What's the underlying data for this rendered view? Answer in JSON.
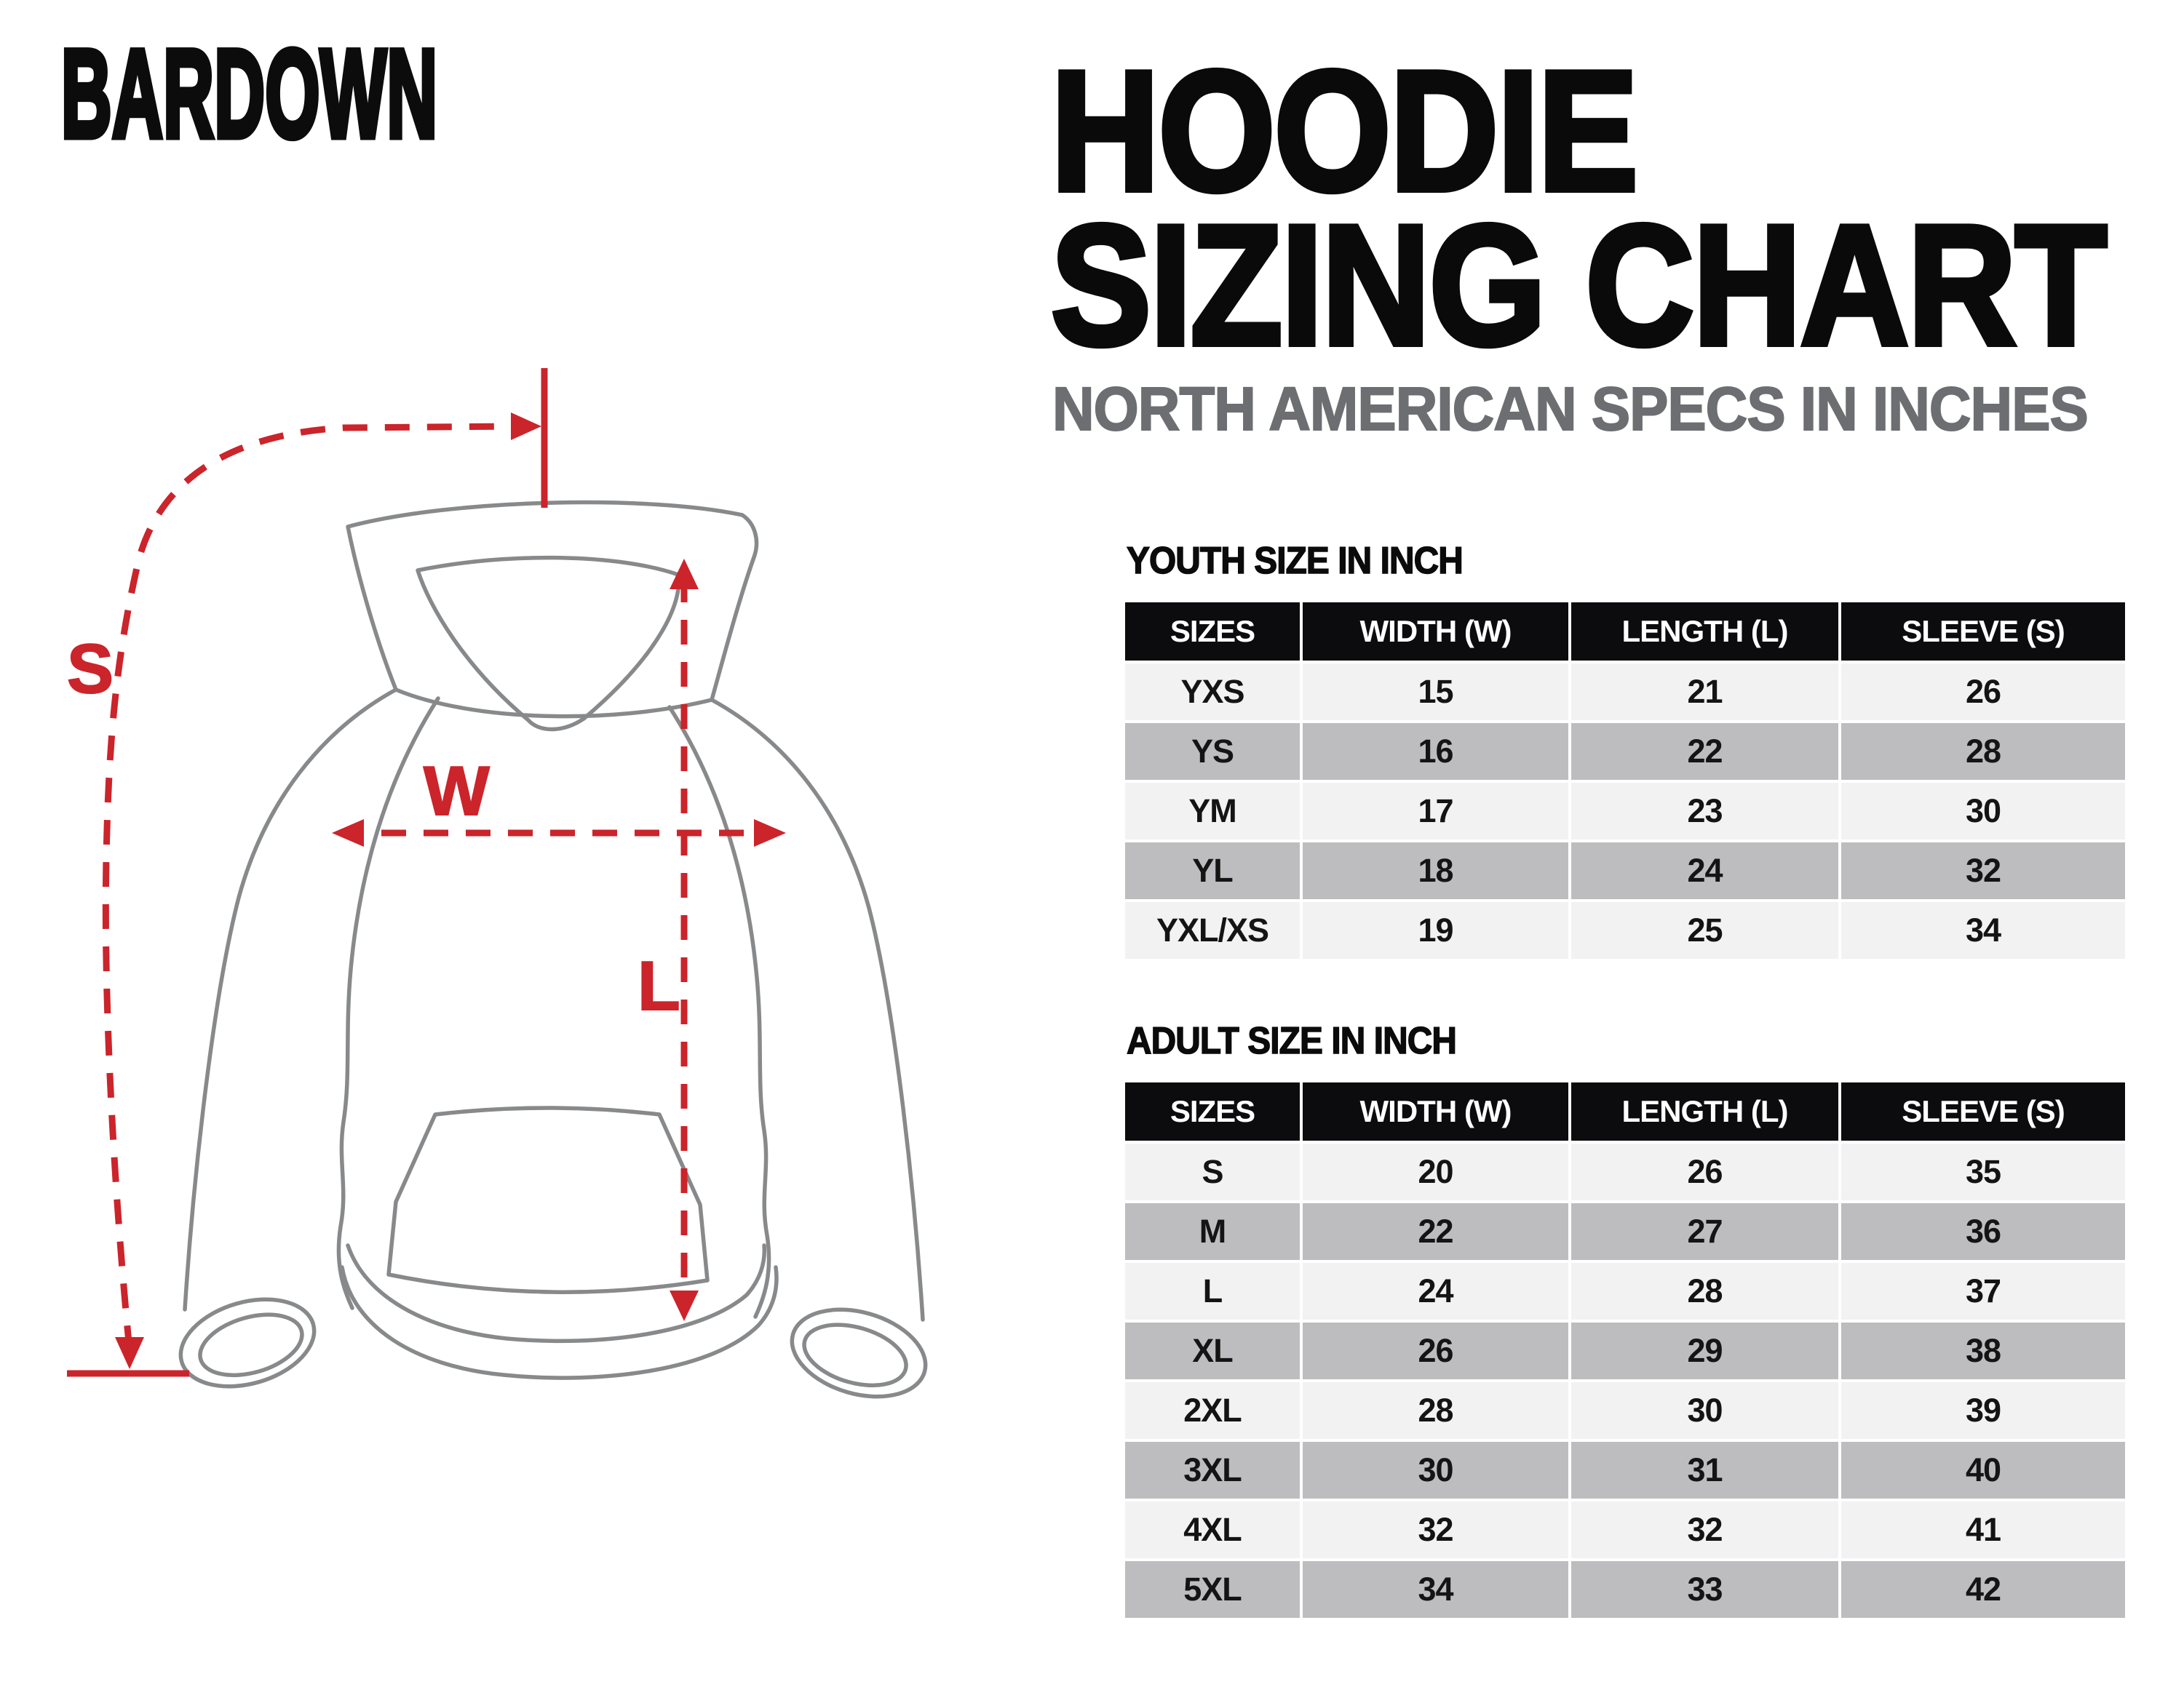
{
  "brand": "BARDOWN",
  "title": {
    "line1": "HOODIE",
    "line2": "SIZING CHART",
    "subtitle": "NORTH AMERICAN SPECS IN INCHES"
  },
  "diagram": {
    "labels": {
      "sleeve": "S",
      "width": "W",
      "length": "L"
    }
  },
  "colors": {
    "accent_red": "#cb242b",
    "header_bg": "#0c0c0e",
    "row_light": "#f2f2f3",
    "row_dark": "#bdbdbf",
    "subtitle_gray": "#6d6e71",
    "outline_gray": "#87898b"
  },
  "tables": [
    {
      "heading": "YOUTH SIZE IN INCH",
      "columns": [
        "SIZES",
        "WIDTH (W)",
        "LENGTH (L)",
        "SLEEVE (S)"
      ],
      "rows": [
        [
          "YXS",
          "15",
          "21",
          "26"
        ],
        [
          "YS",
          "16",
          "22",
          "28"
        ],
        [
          "YM",
          "17",
          "23",
          "30"
        ],
        [
          "YL",
          "18",
          "24",
          "32"
        ],
        [
          "YXL/XS",
          "19",
          "25",
          "34"
        ]
      ]
    },
    {
      "heading": "ADULT SIZE IN INCH",
      "columns": [
        "SIZES",
        "WIDTH (W)",
        "LENGTH (L)",
        "SLEEVE (S)"
      ],
      "rows": [
        [
          "S",
          "20",
          "26",
          "35"
        ],
        [
          "M",
          "22",
          "27",
          "36"
        ],
        [
          "L",
          "24",
          "28",
          "37"
        ],
        [
          "XL",
          "26",
          "29",
          "38"
        ],
        [
          "2XL",
          "28",
          "30",
          "39"
        ],
        [
          "3XL",
          "30",
          "31",
          "40"
        ],
        [
          "4XL",
          "32",
          "32",
          "41"
        ],
        [
          "5XL",
          "34",
          "33",
          "42"
        ]
      ]
    }
  ]
}
